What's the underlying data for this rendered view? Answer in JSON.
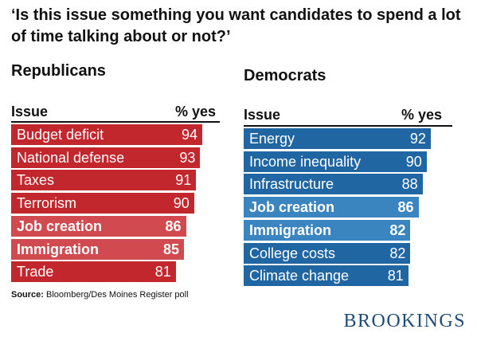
{
  "title": "‘Is this issue something you want candidates to spend a lot of time talking about or not?’",
  "source_label": "Source:",
  "source_text": "Bloomberg/Des Moines Register poll",
  "brand": "BROOKINGS",
  "colors": {
    "republican": "#c1272d",
    "republican_highlight": "#d14a50",
    "democrat": "#1f66a3",
    "democrat_highlight": "#3a84c0"
  },
  "chart_data": [
    {
      "type": "bar",
      "title": "Republicans",
      "column_headers": [
        "Issue",
        "% yes"
      ],
      "categories": [
        "Budget deficit",
        "National defense",
        "Taxes",
        "Terrorism",
        "Job creation",
        "Immigration",
        "Trade"
      ],
      "values": [
        94,
        93,
        91,
        90,
        86,
        85,
        81
      ],
      "highlighted": [
        "Job creation",
        "Immigration"
      ]
    },
    {
      "type": "bar",
      "title": "Democrats",
      "column_headers": [
        "Issue",
        "% yes"
      ],
      "categories": [
        "Energy",
        "Income inequality",
        "Infrastructure",
        "Job creation",
        "Immigration",
        "College costs",
        "Climate change"
      ],
      "values": [
        92,
        90,
        88,
        86,
        82,
        82,
        81
      ],
      "highlighted": [
        "Job creation",
        "Immigration"
      ]
    }
  ]
}
